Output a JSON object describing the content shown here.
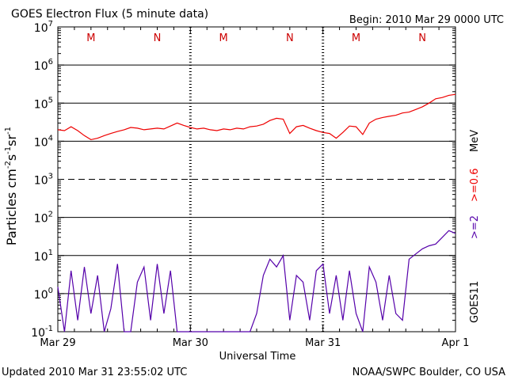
{
  "header": {
    "title": "GOES Electron Flux (5 minute data)",
    "begin": "Begin: 2010 Mar 29 0000 UTC"
  },
  "footer": {
    "updated": "Updated 2010 Mar 31 23:55:02 UTC",
    "credit": "NOAA/SWPC Boulder, CO USA"
  },
  "colors": {
    "series_high": "#ee0000",
    "series_low": "#5500aa",
    "marker": "#cc0000",
    "grid": "#000000"
  },
  "chart_data": {
    "type": "line",
    "title": "GOES Electron Flux (5 minute data)",
    "xlabel": "Universal Time",
    "ylabel_parts": {
      "main": "Particles cm",
      "e1": "-2",
      "s": "s",
      "e2": "-1",
      "sr": "sr",
      "e3": "-1"
    },
    "y_scale": "log",
    "ylim": [
      0.1,
      10000000
    ],
    "y_ticks": [
      {
        "base": "10",
        "exp": "-1",
        "value": 0.1
      },
      {
        "base": "10",
        "exp": "0",
        "value": 1
      },
      {
        "base": "10",
        "exp": "1",
        "value": 10
      },
      {
        "base": "10",
        "exp": "2",
        "value": 100
      },
      {
        "base": "10",
        "exp": "3",
        "value": 1000
      },
      {
        "base": "10",
        "exp": "4",
        "value": 10000
      },
      {
        "base": "10",
        "exp": "5",
        "value": 100000
      },
      {
        "base": "10",
        "exp": "6",
        "value": 1000000
      },
      {
        "base": "10",
        "exp": "7",
        "value": 10000000
      }
    ],
    "dashed_gridline_value": 1000,
    "x_ticks": [
      "Mar 29",
      "Mar 30",
      "Mar 31",
      "Apr 1"
    ],
    "xlim_days": [
      0,
      3
    ],
    "markers": [
      {
        "label": "M",
        "day": 0.25
      },
      {
        "label": "N",
        "day": 0.75
      },
      {
        "label": "M",
        "day": 1.25
      },
      {
        "label": "N",
        "day": 1.75
      },
      {
        "label": "M",
        "day": 2.25
      },
      {
        "label": "N",
        "day": 2.75
      }
    ],
    "right_labels": {
      "mev": "MeV",
      "high": ">=0.6",
      "low": ">=2",
      "satellite": "GOES11"
    },
    "series": [
      {
        "name": ">=0.6",
        "x_days": [
          0.0,
          0.05,
          0.1,
          0.15,
          0.2,
          0.25,
          0.3,
          0.35,
          0.4,
          0.45,
          0.5,
          0.55,
          0.6,
          0.65,
          0.7,
          0.75,
          0.8,
          0.85,
          0.9,
          0.95,
          1.0,
          1.05,
          1.1,
          1.15,
          1.2,
          1.25,
          1.3,
          1.35,
          1.4,
          1.45,
          1.5,
          1.55,
          1.6,
          1.65,
          1.7,
          1.75,
          1.8,
          1.85,
          1.9,
          1.95,
          2.0,
          2.05,
          2.1,
          2.15,
          2.2,
          2.25,
          2.3,
          2.35,
          2.4,
          2.45,
          2.5,
          2.55,
          2.6,
          2.65,
          2.7,
          2.75,
          2.8,
          2.85,
          2.9,
          2.95,
          3.0
        ],
        "values": [
          20000,
          19000,
          24000,
          19000,
          14000,
          11000,
          12000,
          14000,
          16000,
          18000,
          20000,
          23000,
          22000,
          20000,
          21000,
          22000,
          21000,
          25000,
          30000,
          26000,
          23000,
          21000,
          22000,
          20000,
          19000,
          21000,
          20000,
          22000,
          21000,
          24000,
          25000,
          28000,
          35000,
          40000,
          38000,
          16000,
          24000,
          26000,
          22000,
          19000,
          17000,
          16000,
          12000,
          17000,
          25000,
          24000,
          15000,
          30000,
          38000,
          42000,
          45000,
          48000,
          55000,
          58000,
          68000,
          80000,
          100000,
          130000,
          140000,
          160000,
          170000
        ]
      },
      {
        "name": ">=2",
        "x_days": [
          0.0,
          0.05,
          0.1,
          0.15,
          0.2,
          0.25,
          0.3,
          0.35,
          0.4,
          0.45,
          0.5,
          0.55,
          0.6,
          0.65,
          0.7,
          0.75,
          0.8,
          0.85,
          0.9,
          0.95,
          1.0,
          1.05,
          1.1,
          1.15,
          1.2,
          1.25,
          1.3,
          1.35,
          1.4,
          1.45,
          1.5,
          1.55,
          1.6,
          1.65,
          1.7,
          1.75,
          1.8,
          1.85,
          1.9,
          1.95,
          2.0,
          2.05,
          2.1,
          2.15,
          2.2,
          2.25,
          2.3,
          2.35,
          2.4,
          2.45,
          2.5,
          2.55,
          2.6,
          2.65,
          2.7,
          2.75,
          2.8,
          2.85,
          2.9,
          2.95,
          3.0
        ],
        "values": [
          1.5,
          0.1,
          4,
          0.2,
          5,
          0.3,
          3,
          0.1,
          0.4,
          6,
          0.1,
          0.1,
          2,
          5,
          0.2,
          6,
          0.3,
          4,
          0.1,
          0.1,
          0.1,
          0.1,
          0.1,
          0.1,
          0.1,
          0.1,
          0.1,
          0.1,
          0.1,
          0.1,
          0.3,
          3,
          8,
          5,
          10,
          0.2,
          3,
          2,
          0.2,
          4,
          6,
          0.3,
          3,
          0.2,
          4,
          0.3,
          0.1,
          5,
          2,
          0.2,
          3,
          0.3,
          0.2,
          8,
          11,
          15,
          18,
          20,
          30,
          45,
          38
        ]
      }
    ]
  }
}
